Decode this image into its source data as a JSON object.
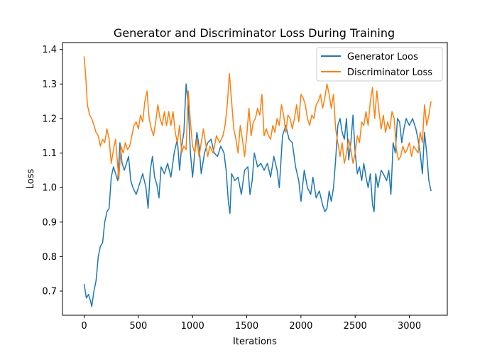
{
  "chart_data": {
    "type": "line",
    "title": "Generator and Discriminator Loss During Training",
    "xlabel": "Iterations",
    "ylabel": "Loss",
    "xlim": [
      -200,
      3350
    ],
    "ylim": [
      0.63,
      1.42
    ],
    "xticks": [
      0,
      500,
      1000,
      1500,
      2000,
      2500,
      3000
    ],
    "yticks": [
      0.7,
      0.8,
      0.9,
      1.0,
      1.1,
      1.2,
      1.3,
      1.4
    ],
    "xtick_labels": [
      "0",
      "500",
      "1000",
      "1500",
      "2000",
      "2500",
      "3000"
    ],
    "ytick_labels": [
      "0.7",
      "0.8",
      "0.9",
      "1.0",
      "1.1",
      "1.2",
      "1.3",
      "1.4"
    ],
    "grid": false,
    "legend_position": "top-right",
    "series": [
      {
        "name": "Generator Loos",
        "color": "#1f77b4",
        "points": [
          [
            0,
            0.72
          ],
          [
            20,
            0.68
          ],
          [
            40,
            0.69
          ],
          [
            60,
            0.67
          ],
          [
            70,
            0.655
          ],
          [
            90,
            0.7
          ],
          [
            110,
            0.73
          ],
          [
            130,
            0.8
          ],
          [
            150,
            0.83
          ],
          [
            170,
            0.84
          ],
          [
            190,
            0.9
          ],
          [
            210,
            0.93
          ],
          [
            230,
            0.94
          ],
          [
            250,
            1.03
          ],
          [
            270,
            1.06
          ],
          [
            290,
            1.04
          ],
          [
            310,
            1.02
          ],
          [
            330,
            1.13
          ],
          [
            350,
            1.07
          ],
          [
            370,
            1.05
          ],
          [
            390,
            1.07
          ],
          [
            410,
            1.09
          ],
          [
            430,
            1.02
          ],
          [
            450,
            1.0
          ],
          [
            480,
            0.98
          ],
          [
            510,
            1.01
          ],
          [
            540,
            1.04
          ],
          [
            570,
            1.0
          ],
          [
            590,
            0.94
          ],
          [
            610,
            1.05
          ],
          [
            630,
            1.09
          ],
          [
            650,
            1.03
          ],
          [
            670,
            1.01
          ],
          [
            690,
            0.97
          ],
          [
            710,
            1.06
          ],
          [
            740,
            1.04
          ],
          [
            770,
            1.07
          ],
          [
            800,
            1.03
          ],
          [
            830,
            1.1
          ],
          [
            860,
            1.14
          ],
          [
            880,
            1.05
          ],
          [
            900,
            1.12
          ],
          [
            920,
            1.16
          ],
          [
            940,
            1.3
          ],
          [
            960,
            1.24
          ],
          [
            980,
            1.1
          ],
          [
            1000,
            1.03
          ],
          [
            1020,
            1.1
          ],
          [
            1040,
            1.16
          ],
          [
            1060,
            1.12
          ],
          [
            1080,
            1.04
          ],
          [
            1110,
            1.1
          ],
          [
            1140,
            1.13
          ],
          [
            1170,
            1.14
          ],
          [
            1200,
            1.1
          ],
          [
            1230,
            1.09
          ],
          [
            1260,
            1.12
          ],
          [
            1290,
            1.1
          ],
          [
            1310,
            1.05
          ],
          [
            1330,
            0.96
          ],
          [
            1345,
            0.925
          ],
          [
            1360,
            1.04
          ],
          [
            1390,
            1.02
          ],
          [
            1420,
            1.03
          ],
          [
            1450,
            0.98
          ],
          [
            1480,
            1.05
          ],
          [
            1510,
            1.06
          ],
          [
            1530,
            0.98
          ],
          [
            1550,
            1.02
          ],
          [
            1570,
            1.1
          ],
          [
            1600,
            1.06
          ],
          [
            1630,
            1.07
          ],
          [
            1660,
            1.05
          ],
          [
            1690,
            1.07
          ],
          [
            1720,
            1.03
          ],
          [
            1750,
            1.09
          ],
          [
            1780,
            1.05
          ],
          [
            1800,
            1.0
          ],
          [
            1830,
            1.15
          ],
          [
            1860,
            1.18
          ],
          [
            1890,
            1.14
          ],
          [
            1920,
            1.13
          ],
          [
            1950,
            1.06
          ],
          [
            1980,
            1.02
          ],
          [
            2000,
            0.96
          ],
          [
            2030,
            1.05
          ],
          [
            2060,
            1.0
          ],
          [
            2090,
            0.98
          ],
          [
            2110,
            1.03
          ],
          [
            2140,
            0.97
          ],
          [
            2170,
            0.99
          ],
          [
            2200,
            0.95
          ],
          [
            2220,
            0.93
          ],
          [
            2240,
            0.94
          ],
          [
            2260,
            0.99
          ],
          [
            2280,
            0.96
          ],
          [
            2300,
            1.0
          ],
          [
            2320,
            1.08
          ],
          [
            2340,
            1.18
          ],
          [
            2360,
            1.2
          ],
          [
            2380,
            1.16
          ],
          [
            2400,
            1.14
          ],
          [
            2420,
            1.2
          ],
          [
            2440,
            1.08
          ],
          [
            2460,
            1.13
          ],
          [
            2480,
            1.21
          ],
          [
            2500,
            1.1
          ],
          [
            2520,
            1.04
          ],
          [
            2540,
            1.06
          ],
          [
            2560,
            1.02
          ],
          [
            2580,
            1.07
          ],
          [
            2600,
            1.03
          ],
          [
            2620,
            1.0
          ],
          [
            2640,
            1.04
          ],
          [
            2660,
            0.95
          ],
          [
            2675,
            0.93
          ],
          [
            2690,
            1.04
          ],
          [
            2710,
            1.0
          ],
          [
            2740,
            1.05
          ],
          [
            2760,
            1.04
          ],
          [
            2790,
            1.02
          ],
          [
            2810,
            1.05
          ],
          [
            2830,
            0.98
          ],
          [
            2850,
            1.13
          ],
          [
            2870,
            1.1
          ],
          [
            2890,
            1.2
          ],
          [
            2910,
            1.19
          ],
          [
            2930,
            1.13
          ],
          [
            2950,
            1.17
          ],
          [
            2970,
            1.2
          ],
          [
            3000,
            1.18
          ],
          [
            3030,
            1.2
          ],
          [
            3060,
            1.17
          ],
          [
            3080,
            1.14
          ],
          [
            3100,
            1.1
          ],
          [
            3120,
            1.04
          ],
          [
            3140,
            1.16
          ],
          [
            3160,
            1.1
          ],
          [
            3180,
            1.02
          ],
          [
            3200,
            0.99
          ]
        ]
      },
      {
        "name": "Discriminator Loss",
        "color": "#ff7f0e",
        "points": [
          [
            0,
            1.38
          ],
          [
            15,
            1.32
          ],
          [
            30,
            1.24
          ],
          [
            50,
            1.21
          ],
          [
            70,
            1.2
          ],
          [
            90,
            1.18
          ],
          [
            110,
            1.16
          ],
          [
            130,
            1.15
          ],
          [
            150,
            1.12
          ],
          [
            170,
            1.14
          ],
          [
            190,
            1.13
          ],
          [
            210,
            1.17
          ],
          [
            230,
            1.14
          ],
          [
            250,
            1.07
          ],
          [
            270,
            1.11
          ],
          [
            290,
            1.14
          ],
          [
            310,
            1.06
          ],
          [
            320,
            1.025
          ],
          [
            340,
            1.12
          ],
          [
            360,
            1.1
          ],
          [
            380,
            1.13
          ],
          [
            400,
            1.11
          ],
          [
            420,
            1.12
          ],
          [
            440,
            1.15
          ],
          [
            460,
            1.18
          ],
          [
            480,
            1.19
          ],
          [
            500,
            1.17
          ],
          [
            520,
            1.21
          ],
          [
            540,
            1.19
          ],
          [
            560,
            1.25
          ],
          [
            580,
            1.28
          ],
          [
            600,
            1.2
          ],
          [
            620,
            1.17
          ],
          [
            640,
            1.15
          ],
          [
            660,
            1.19
          ],
          [
            680,
            1.24
          ],
          [
            700,
            1.2
          ],
          [
            720,
            1.18
          ],
          [
            740,
            1.22
          ],
          [
            760,
            1.18
          ],
          [
            780,
            1.22
          ],
          [
            800,
            1.18
          ],
          [
            820,
            1.22
          ],
          [
            840,
            1.16
          ],
          [
            860,
            1.13
          ],
          [
            880,
            1.18
          ],
          [
            900,
            1.1
          ],
          [
            920,
            1.12
          ],
          [
            940,
            1.11
          ],
          [
            960,
            1.28
          ],
          [
            980,
            1.19
          ],
          [
            1000,
            1.12
          ],
          [
            1020,
            1.1
          ],
          [
            1040,
            1.14
          ],
          [
            1060,
            1.09
          ],
          [
            1080,
            1.13
          ],
          [
            1100,
            1.17
          ],
          [
            1120,
            1.13
          ],
          [
            1140,
            1.09
          ],
          [
            1160,
            1.12
          ],
          [
            1190,
            1.1
          ],
          [
            1220,
            1.15
          ],
          [
            1250,
            1.13
          ],
          [
            1280,
            1.15
          ],
          [
            1300,
            1.18
          ],
          [
            1320,
            1.24
          ],
          [
            1340,
            1.33
          ],
          [
            1360,
            1.25
          ],
          [
            1380,
            1.17
          ],
          [
            1400,
            1.14
          ],
          [
            1420,
            1.1
          ],
          [
            1440,
            1.18
          ],
          [
            1460,
            1.14
          ],
          [
            1480,
            1.09
          ],
          [
            1500,
            1.15
          ],
          [
            1520,
            1.23
          ],
          [
            1540,
            1.15
          ],
          [
            1560,
            1.19
          ],
          [
            1580,
            1.2
          ],
          [
            1600,
            1.23
          ],
          [
            1620,
            1.21
          ],
          [
            1640,
            1.27
          ],
          [
            1660,
            1.15
          ],
          [
            1680,
            1.17
          ],
          [
            1700,
            1.15
          ],
          [
            1720,
            1.14
          ],
          [
            1740,
            1.18
          ],
          [
            1760,
            1.16
          ],
          [
            1780,
            1.2
          ],
          [
            1800,
            1.18
          ],
          [
            1820,
            1.24
          ],
          [
            1840,
            1.21
          ],
          [
            1860,
            1.16
          ],
          [
            1880,
            1.21
          ],
          [
            1900,
            1.2
          ],
          [
            1920,
            1.17
          ],
          [
            1940,
            1.2
          ],
          [
            1960,
            1.24
          ],
          [
            1980,
            1.19
          ],
          [
            2000,
            1.27
          ],
          [
            2020,
            1.26
          ],
          [
            2040,
            1.24
          ],
          [
            2060,
            1.2
          ],
          [
            2080,
            1.18
          ],
          [
            2100,
            1.21
          ],
          [
            2120,
            1.2
          ],
          [
            2140,
            1.24
          ],
          [
            2160,
            1.25
          ],
          [
            2180,
            1.27
          ],
          [
            2200,
            1.23
          ],
          [
            2220,
            1.26
          ],
          [
            2240,
            1.3
          ],
          [
            2260,
            1.27
          ],
          [
            2280,
            1.23
          ],
          [
            2300,
            1.27
          ],
          [
            2320,
            1.17
          ],
          [
            2340,
            1.13
          ],
          [
            2360,
            1.09
          ],
          [
            2380,
            1.13
          ],
          [
            2400,
            1.07
          ],
          [
            2420,
            1.1
          ],
          [
            2440,
            1.14
          ],
          [
            2460,
            1.11
          ],
          [
            2480,
            1.07
          ],
          [
            2500,
            1.1
          ],
          [
            2520,
            1.15
          ],
          [
            2540,
            1.13
          ],
          [
            2560,
            1.19
          ],
          [
            2580,
            1.18
          ],
          [
            2600,
            1.22
          ],
          [
            2620,
            1.18
          ],
          [
            2640,
            1.25
          ],
          [
            2660,
            1.29
          ],
          [
            2680,
            1.2
          ],
          [
            2700,
            1.28
          ],
          [
            2720,
            1.22
          ],
          [
            2740,
            1.17
          ],
          [
            2760,
            1.21
          ],
          [
            2780,
            1.16
          ],
          [
            2800,
            1.19
          ],
          [
            2820,
            1.17
          ],
          [
            2840,
            1.22
          ],
          [
            2860,
            1.2
          ],
          [
            2880,
            1.11
          ],
          [
            2900,
            1.08
          ],
          [
            2920,
            1.09
          ],
          [
            2940,
            1.12
          ],
          [
            2960,
            1.1
          ],
          [
            2980,
            1.11
          ],
          [
            3000,
            1.13
          ],
          [
            3020,
            1.09
          ],
          [
            3040,
            1.12
          ],
          [
            3060,
            1.11
          ],
          [
            3080,
            1.1
          ],
          [
            3100,
            1.16
          ],
          [
            3120,
            1.13
          ],
          [
            3140,
            1.24
          ],
          [
            3160,
            1.18
          ],
          [
            3180,
            1.21
          ],
          [
            3200,
            1.25
          ]
        ]
      }
    ]
  }
}
